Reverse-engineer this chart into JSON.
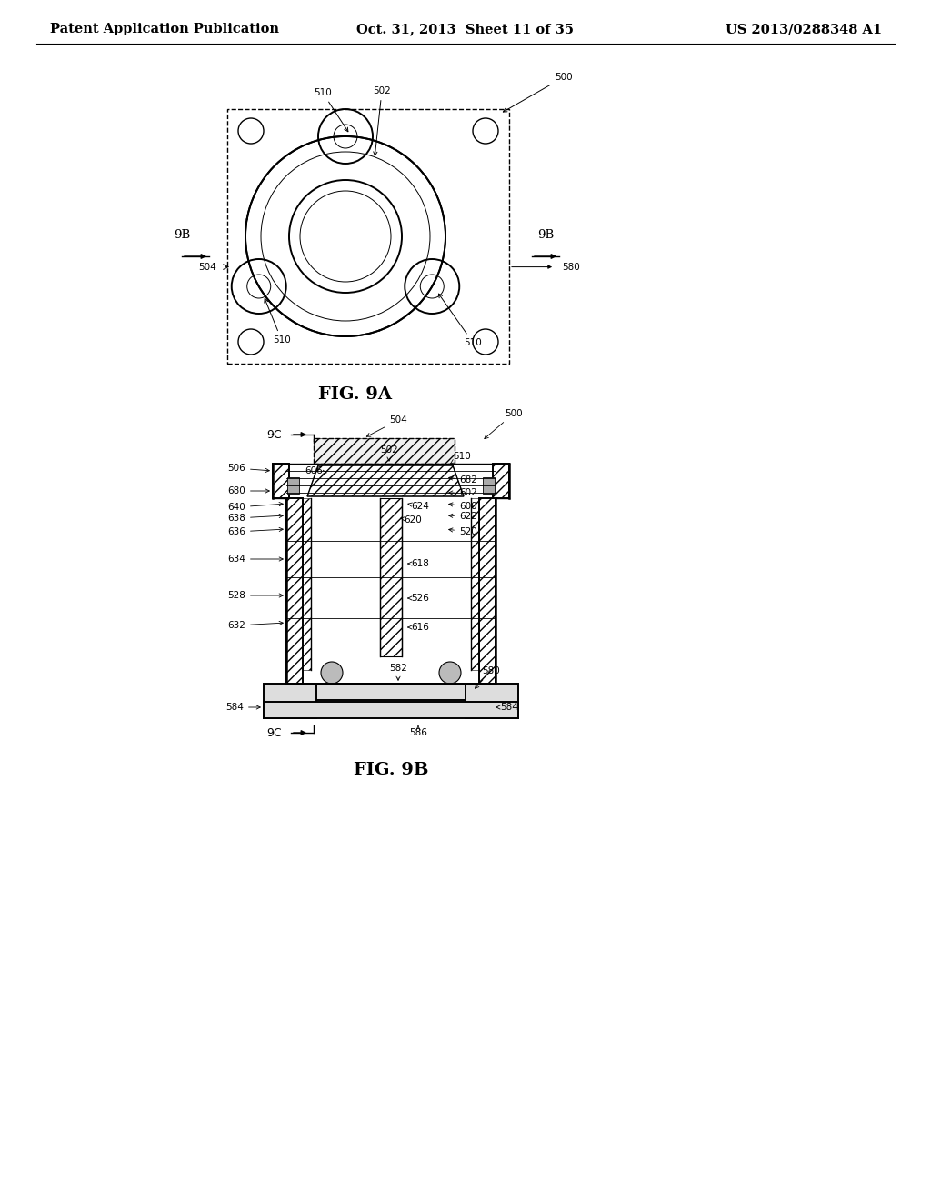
{
  "bg_color": "#ffffff",
  "line_color": "#000000",
  "header": {
    "left": "Patent Application Publication",
    "center": "Oct. 31, 2013  Sheet 11 of 35",
    "right": "US 2013/0288348 A1",
    "fontsize": 10.5
  },
  "fig9a_label": "FIG. 9A",
  "fig9b_label": "FIG. 9B"
}
